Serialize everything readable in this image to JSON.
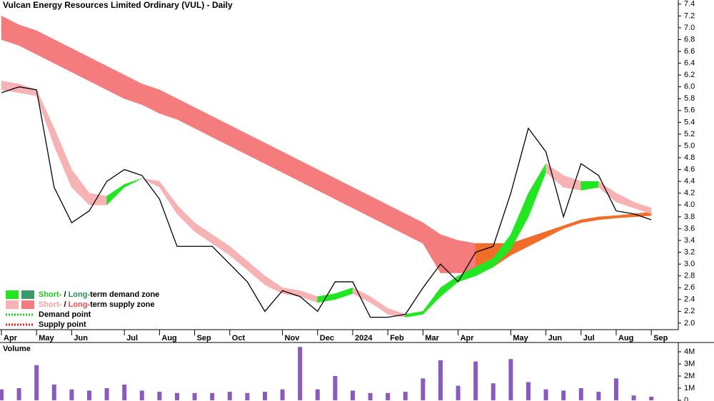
{
  "chart_data": {
    "type": "stock-zones",
    "title": "Vulcan Energy Resources Limited Ordinary (VUL) - Daily",
    "categories": [
      "Apr",
      null,
      "May",
      null,
      "Jun",
      null,
      null,
      "Jul",
      null,
      "Aug",
      null,
      "Sep",
      null,
      "Oct",
      null,
      null,
      "Nov",
      null,
      "Dec",
      null,
      "2024",
      null,
      "Feb",
      null,
      "Mar",
      null,
      "Apr",
      null,
      null,
      "May",
      null,
      "Jun",
      null,
      "Jul",
      null,
      "Aug",
      null,
      "Sep"
    ],
    "price": {
      "color": "#000000",
      "values": [
        5.9,
        6.0,
        5.95,
        4.3,
        3.7,
        3.9,
        4.4,
        4.6,
        4.5,
        4.1,
        3.3,
        3.3,
        3.3,
        3.0,
        2.7,
        2.2,
        2.55,
        2.45,
        2.2,
        2.7,
        2.7,
        2.1,
        2.1,
        2.15,
        2.6,
        3.0,
        2.7,
        3.2,
        3.3,
        4.2,
        5.3,
        4.9,
        3.8,
        4.7,
        4.5,
        3.9,
        3.85,
        3.75
      ]
    },
    "short_term_zone": {
      "demand_color": "#22e622",
      "supply_color": "#f7b3b3",
      "upper": [
        6.1,
        6.05,
        5.95,
        5.3,
        4.6,
        4.2,
        4.15,
        4.35,
        4.45,
        4.4,
        4.0,
        3.7,
        3.5,
        3.3,
        3.05,
        2.8,
        2.6,
        2.55,
        2.45,
        2.5,
        2.6,
        2.45,
        2.25,
        2.15,
        2.2,
        2.6,
        2.8,
        2.95,
        3.1,
        3.5,
        4.2,
        4.7,
        4.5,
        4.4,
        4.4,
        4.2,
        4.05,
        3.95
      ],
      "lower": [
        5.95,
        5.9,
        5.85,
        5.0,
        4.3,
        4.0,
        4.0,
        4.3,
        4.45,
        4.3,
        3.85,
        3.55,
        3.35,
        3.15,
        2.9,
        2.65,
        2.5,
        2.45,
        2.35,
        2.4,
        2.5,
        2.35,
        2.15,
        2.1,
        2.15,
        2.45,
        2.7,
        2.8,
        2.95,
        3.25,
        3.8,
        4.55,
        4.3,
        4.25,
        4.3,
        4.05,
        3.95,
        3.85
      ]
    },
    "long_term_zone": {
      "rising_color": "#f26c2a",
      "supply_color": "#f47c7c",
      "upper": [
        7.2,
        7.05,
        6.95,
        6.8,
        6.65,
        6.5,
        6.35,
        6.2,
        6.05,
        5.95,
        5.8,
        5.65,
        5.5,
        5.35,
        5.2,
        5.05,
        4.9,
        4.75,
        4.6,
        4.45,
        4.3,
        4.15,
        4.0,
        3.85,
        3.7,
        3.5,
        3.4,
        3.35,
        3.35,
        3.35,
        3.45,
        3.55,
        3.65,
        3.75,
        3.8,
        3.82,
        3.85,
        3.88
      ],
      "lower": [
        6.8,
        6.7,
        6.55,
        6.4,
        6.25,
        6.1,
        5.95,
        5.8,
        5.7,
        5.55,
        5.45,
        5.3,
        5.15,
        5.0,
        4.85,
        4.7,
        4.55,
        4.4,
        4.25,
        4.1,
        3.95,
        3.8,
        3.65,
        3.5,
        3.35,
        2.85,
        2.85,
        2.85,
        2.95,
        3.15,
        3.3,
        3.45,
        3.6,
        3.7,
        3.75,
        3.78,
        3.8,
        3.82
      ]
    },
    "ylim": [
      1.89,
      7.47
    ],
    "yticks": [
      {
        "value": 2,
        "label": "2.0"
      },
      {
        "value": 2.2,
        "label": "2.2"
      },
      {
        "value": 2.4,
        "label": "2.4"
      },
      {
        "value": 2.6,
        "label": "2.6"
      },
      {
        "value": 2.8,
        "label": "2.8"
      },
      {
        "value": 3,
        "label": "3.0"
      },
      {
        "value": 3.2,
        "label": "3.2"
      },
      {
        "value": 3.4,
        "label": "3.4"
      },
      {
        "value": 3.6,
        "label": "3.6"
      },
      {
        "value": 3.8,
        "label": "3.8"
      },
      {
        "value": 4,
        "label": "4.0"
      },
      {
        "value": 4.2,
        "label": "4.2"
      },
      {
        "value": 4.4,
        "label": "4.4"
      },
      {
        "value": 4.6,
        "label": "4.6"
      },
      {
        "value": 4.8,
        "label": "4.8"
      },
      {
        "value": 5,
        "label": "5.0"
      },
      {
        "value": 5.2,
        "label": "5.2"
      },
      {
        "value": 5.4,
        "label": "5.4"
      },
      {
        "value": 5.6,
        "label": "5.6"
      },
      {
        "value": 5.8,
        "label": "5.8"
      },
      {
        "value": 6,
        "label": "6.0"
      },
      {
        "value": 6.2,
        "label": "6.2"
      },
      {
        "value": 6.4,
        "label": "6.4"
      },
      {
        "value": 6.6,
        "label": "6.6"
      },
      {
        "value": 6.8,
        "label": "6.8"
      },
      {
        "value": 7,
        "label": "7.0"
      },
      {
        "value": 7.2,
        "label": "7.2"
      },
      {
        "value": 7.4,
        "label": "7.4"
      }
    ],
    "legend": [
      {
        "parts": [
          "Short-",
          " / ",
          "Long-",
          "term demand zone"
        ],
        "part_colors": [
          "#22cc22",
          "#000000",
          "#2e8b57",
          "#000000"
        ],
        "swatches": [
          "#22e622",
          "#3a9a6a"
        ]
      },
      {
        "parts": [
          "Short-",
          " / ",
          "Long-",
          "term supply zone"
        ],
        "part_colors": [
          "#f4a0a0",
          "#000000",
          "#e05050",
          "#000000"
        ],
        "swatches": [
          "#f7b3b3",
          "#f47c7c"
        ]
      },
      {
        "parts": [
          "Demand point"
        ],
        "part_colors": [
          "#000000"
        ],
        "line_color": "#22cc22"
      },
      {
        "parts": [
          "Supply point"
        ],
        "part_colors": [
          "#000000"
        ],
        "line_color": "#e02020"
      }
    ],
    "volume": {
      "title": "Volume",
      "title_color": "#4b2c8a",
      "color": "#8a5bbf",
      "values": [
        900000,
        1000000,
        2900000,
        1300000,
        900000,
        800000,
        1000000,
        1300000,
        800000,
        700000,
        600000,
        600000,
        600000,
        700000,
        600000,
        700000,
        900000,
        4400000,
        900000,
        2000000,
        800000,
        600000,
        600000,
        700000,
        1800000,
        3300000,
        1200000,
        3200000,
        1400000,
        3400000,
        1500000,
        900000,
        800000,
        1000000,
        700000,
        1800000,
        400000,
        300000
      ],
      "ylim": [
        0,
        4530000
      ],
      "yticks": [
        0,
        {
          "value": 1000000,
          "label": "1M"
        },
        {
          "value": 2000000,
          "label": "2M"
        },
        {
          "value": 3000000,
          "label": "3M"
        },
        {
          "value": 4000000,
          "label": "4M"
        }
      ]
    }
  }
}
